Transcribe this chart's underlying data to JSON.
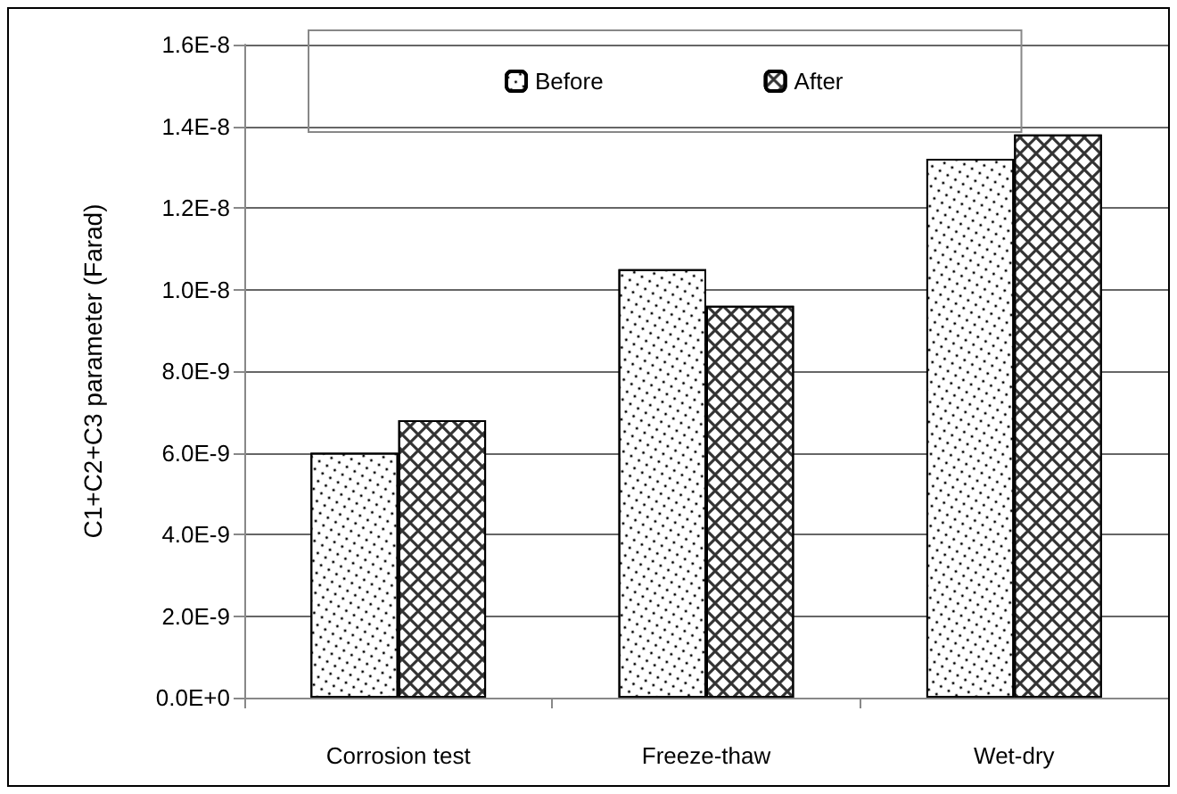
{
  "chart_data": {
    "type": "bar",
    "ylabel": "C1+C2+C3 parameter (Farad)",
    "categories": [
      "Corrosion test",
      "Freeze-thaw",
      "Wet-dry"
    ],
    "series": [
      {
        "name": "Before",
        "color": "#ffffff",
        "values": [
          6e-09,
          1.05e-08,
          1.32e-08
        ]
      },
      {
        "name": "After",
        "color": "#ffffff",
        "values": [
          6.8e-09,
          9.6e-09,
          1.38e-08
        ]
      }
    ],
    "ylim": [
      0,
      1.6e-08
    ],
    "yticks": [
      {
        "value": 0,
        "label": "0.0E+0"
      },
      {
        "value": 2e-09,
        "label": "2.0E-9"
      },
      {
        "value": 4e-09,
        "label": "4.0E-9"
      },
      {
        "value": 6e-09,
        "label": "6.0E-9"
      },
      {
        "value": 8e-09,
        "label": "8.0E-9"
      },
      {
        "value": 1e-08,
        "label": "1.0E-8"
      },
      {
        "value": 1.2e-08,
        "label": "1.2E-8"
      },
      {
        "value": 1.4e-08,
        "label": "1.4E-8"
      },
      {
        "value": 1.6e-08,
        "label": "1.6E-8"
      }
    ],
    "grid": "y",
    "legend": "top"
  }
}
